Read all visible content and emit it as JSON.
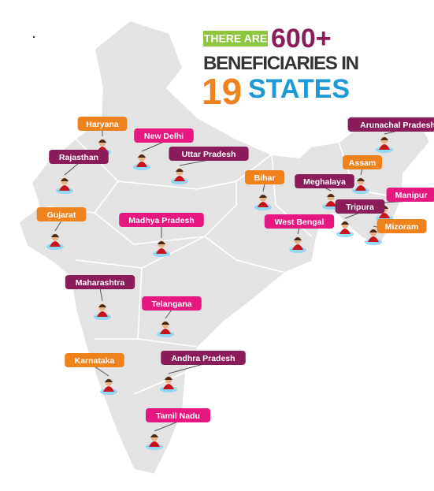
{
  "header": {
    "line1_boxed": "THERE ARE",
    "line1_number": "600+",
    "line2": "BENEFICIARIES IN",
    "line3_number": "19",
    "line3_text": "STATES"
  },
  "labels": [
    {
      "text": "Haryana",
      "color": "#f0821e"
    },
    {
      "text": "New Delhi",
      "color": "#e6177e"
    },
    {
      "text": "Uttar Pradesh",
      "color": "#8b1c5a"
    },
    {
      "text": "Rajasthan",
      "color": "#8b1c5a"
    },
    {
      "text": "Bihar",
      "color": "#f0821e"
    },
    {
      "text": "Arunachal Pradesh",
      "color": "#8b1c5a"
    },
    {
      "text": "Assam",
      "color": "#f0821e"
    },
    {
      "text": "Meghalaya",
      "color": "#8b1c5a"
    },
    {
      "text": "Manipur",
      "color": "#e6177e"
    },
    {
      "text": "Tripura",
      "color": "#8b1c5a"
    },
    {
      "text": "Mizoram",
      "color": "#f0821e"
    },
    {
      "text": "West Bengal",
      "color": "#e6177e"
    },
    {
      "text": "Gujarat",
      "color": "#f0821e"
    },
    {
      "text": "Madhya Pradesh",
      "color": "#e6177e"
    },
    {
      "text": "Maharashtra",
      "color": "#8b1c5a"
    },
    {
      "text": "Telangana",
      "color": "#e6177e"
    },
    {
      "text": "Karnataka",
      "color": "#f0821e"
    },
    {
      "text": "Andhra Pradesh",
      "color": "#8b1c5a"
    },
    {
      "text": "Tamil Nadu",
      "color": "#e6177e"
    }
  ]
}
